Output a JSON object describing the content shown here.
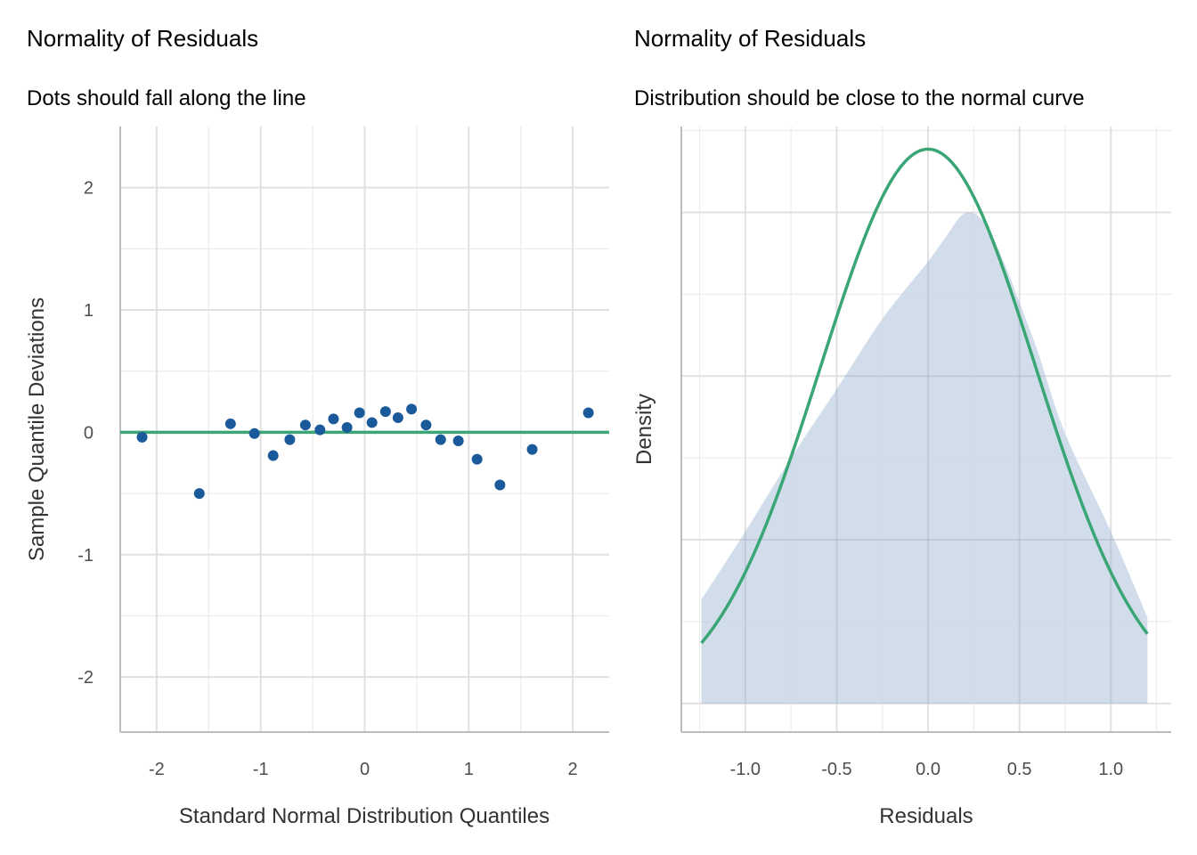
{
  "chart_data": [
    {
      "type": "scatter",
      "title": "Normality of Residuals",
      "subtitle": "Dots should fall along the line",
      "xlabel": "Standard Normal Distribution Quantiles",
      "ylabel": "Sample Quantile Deviations",
      "xlim": [
        -2.35,
        2.35
      ],
      "ylim": [
        -2.45,
        2.5
      ],
      "xticks": [
        -2,
        -1,
        0,
        1,
        2
      ],
      "xtick_labels": [
        "-2",
        "-1",
        "0",
        "1",
        "2"
      ],
      "yticks": [
        -2,
        -1,
        0,
        1,
        2
      ],
      "ytick_labels": [
        "-2",
        "-1",
        "0",
        "1",
        "2"
      ],
      "grid": true,
      "reference_line": {
        "y": 0,
        "color": "#3aa675"
      },
      "point_color": "#1b5a9a",
      "points": [
        {
          "x": -2.14,
          "y": -0.04
        },
        {
          "x": -1.59,
          "y": -0.5
        },
        {
          "x": -1.29,
          "y": 0.07
        },
        {
          "x": -1.06,
          "y": -0.01
        },
        {
          "x": -0.88,
          "y": -0.19
        },
        {
          "x": -0.72,
          "y": -0.06
        },
        {
          "x": -0.57,
          "y": 0.06
        },
        {
          "x": -0.43,
          "y": 0.02
        },
        {
          "x": -0.3,
          "y": 0.11
        },
        {
          "x": -0.17,
          "y": 0.04
        },
        {
          "x": -0.05,
          "y": 0.16
        },
        {
          "x": 0.07,
          "y": 0.08
        },
        {
          "x": 0.2,
          "y": 0.17
        },
        {
          "x": 0.32,
          "y": 0.12
        },
        {
          "x": 0.45,
          "y": 0.19
        },
        {
          "x": 0.59,
          "y": 0.06
        },
        {
          "x": 0.73,
          "y": -0.06
        },
        {
          "x": 0.9,
          "y": -0.07
        },
        {
          "x": 1.08,
          "y": -0.22
        },
        {
          "x": 1.3,
          "y": -0.43
        },
        {
          "x": 1.61,
          "y": -0.14
        },
        {
          "x": 2.15,
          "y": 0.16
        }
      ]
    },
    {
      "type": "area",
      "title": "Normality of Residuals",
      "subtitle": "Distribution should be close to the normal curve",
      "xlabel": "Residuals",
      "ylabel": "Density",
      "xlim": [
        -1.35,
        1.33
      ],
      "ylim": [
        -0.035,
        0.705
      ],
      "xticks": [
        -1.0,
        -0.5,
        0.0,
        0.5,
        1.0
      ],
      "xtick_labels": [
        "-1.0",
        "-0.5",
        "0.0",
        "0.5",
        "1.0"
      ],
      "yticks": [
        0,
        0.2,
        0.4,
        0.6
      ],
      "ytick_labels": [],
      "grid": true,
      "density_color": "#c5d4e6",
      "normal_color": "#3aa675",
      "density": {
        "x": [
          -1.24,
          -1.0,
          -0.75,
          -0.5,
          -0.25,
          0.0,
          0.1,
          0.2,
          0.3,
          0.4,
          0.5,
          0.6,
          0.75,
          1.0,
          1.2
        ],
        "y": [
          0.127,
          0.21,
          0.3,
          0.384,
          0.47,
          0.54,
          0.571,
          0.599,
          0.59,
          0.547,
          0.49,
          0.43,
          0.33,
          0.21,
          0.105
        ]
      },
      "normal_curve": {
        "mean": 0.0,
        "sd": 0.589,
        "x_range": [
          -1.24,
          1.2
        ]
      }
    }
  ]
}
